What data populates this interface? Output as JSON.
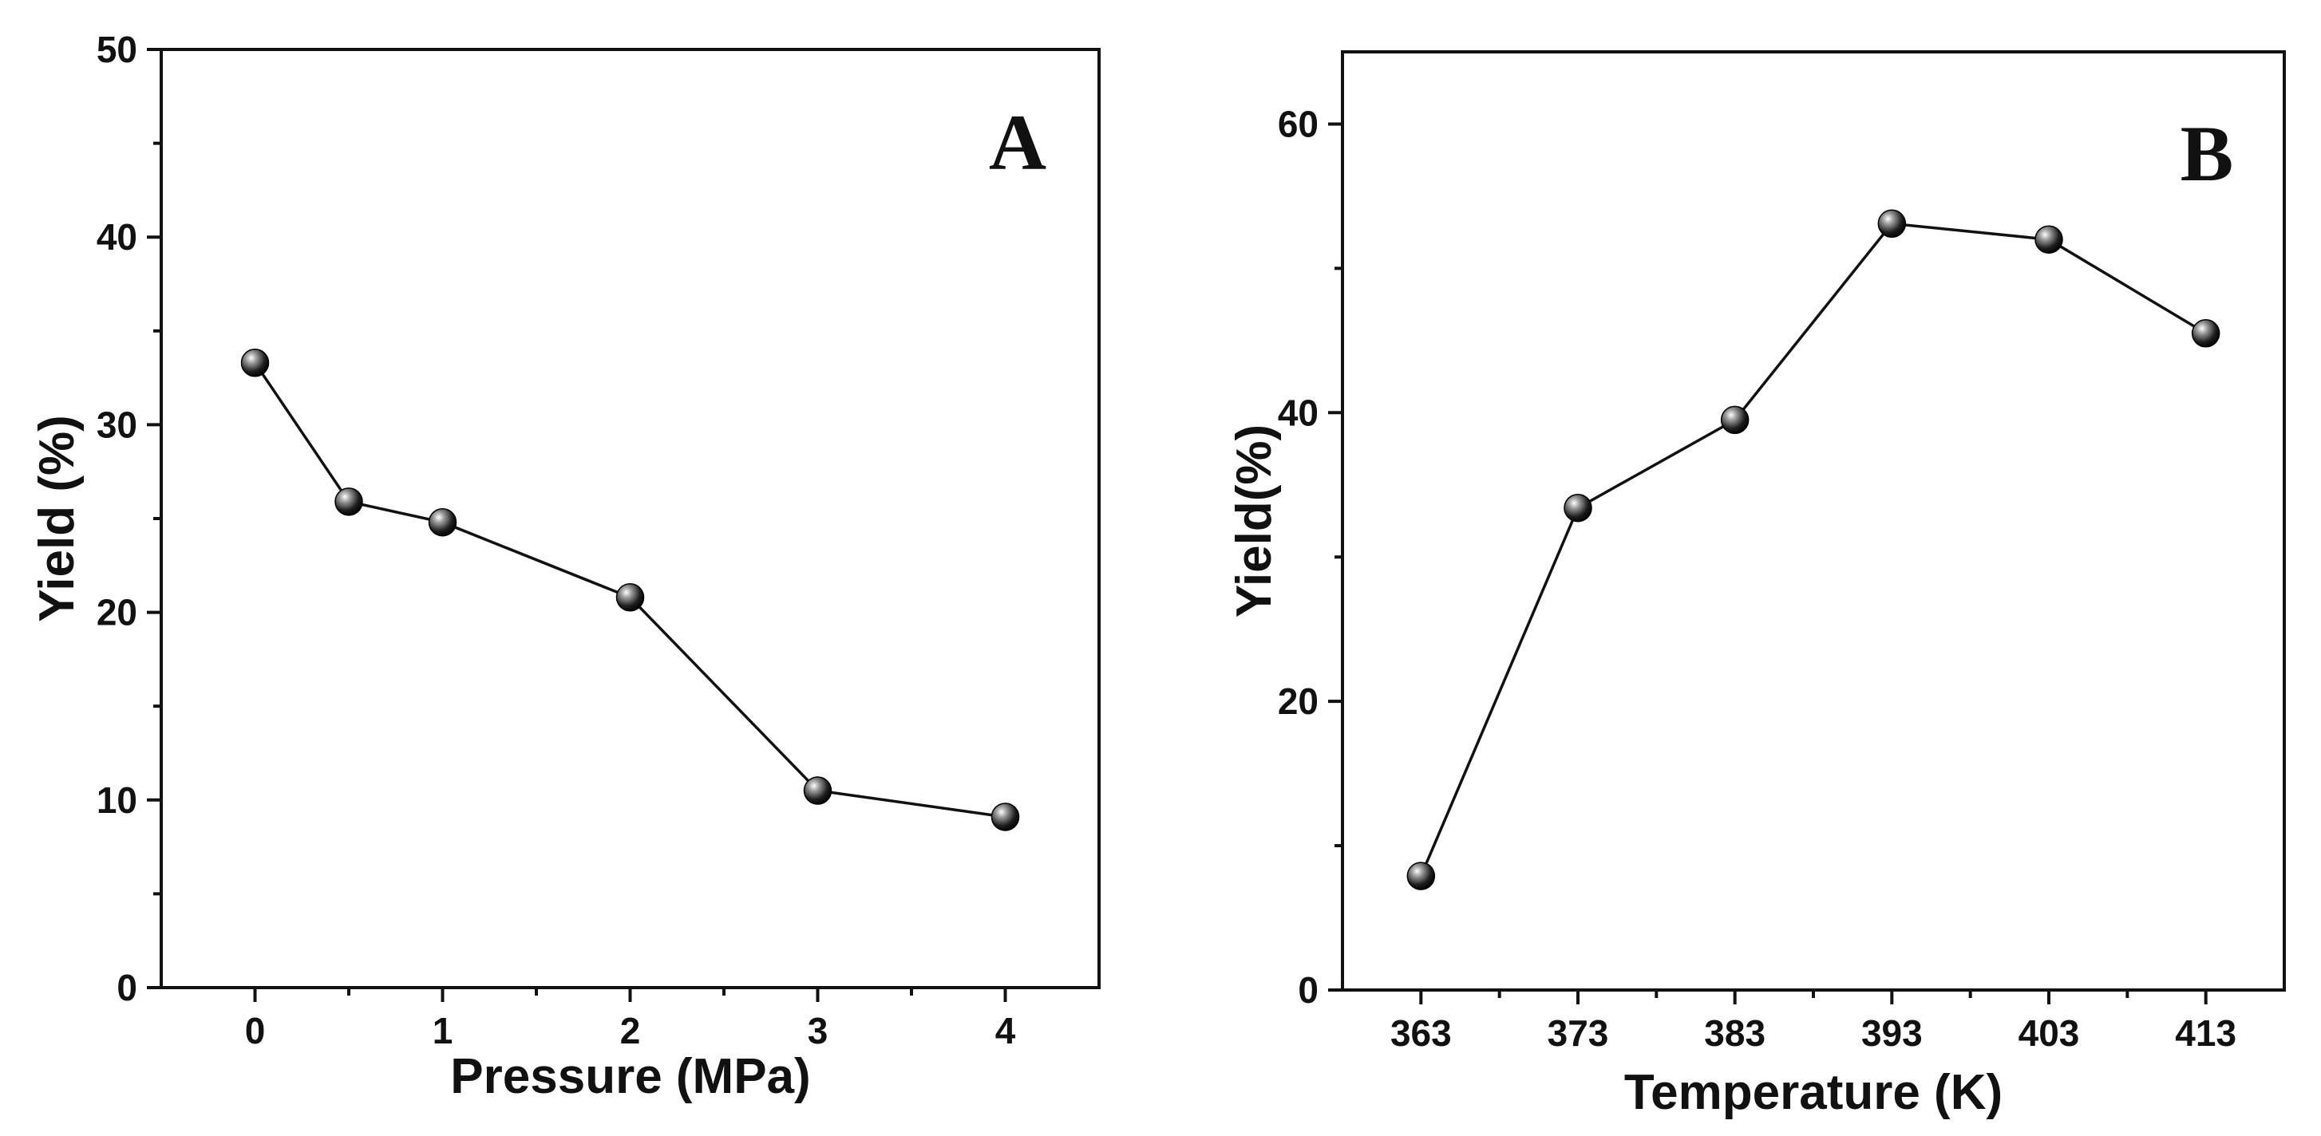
{
  "chart_data": [
    {
      "type": "line",
      "panel_label": "A",
      "title": "",
      "xlabel": "Pressure (MPa)",
      "ylabel": "Yield (%)",
      "xlim": [
        -0.5,
        4.5
      ],
      "ylim": [
        0,
        50
      ],
      "x_ticks": [
        "0",
        "1",
        "2",
        "3",
        "4"
      ],
      "y_ticks": [
        "0",
        "10",
        "20",
        "30",
        "40",
        "50"
      ],
      "grid": false,
      "series": [
        {
          "name": "Yield",
          "x": [
            0,
            0.5,
            1,
            2,
            3,
            4
          ],
          "y": [
            33.3,
            25.9,
            24.8,
            20.8,
            10.5,
            9.1
          ]
        }
      ]
    },
    {
      "type": "line",
      "panel_label": "B",
      "title": "",
      "xlabel": "Temperature (K)",
      "ylabel": "Yield(%)",
      "xlim": [
        358,
        418
      ],
      "ylim": [
        0,
        65
      ],
      "x_ticks": [
        "363",
        "373",
        "383",
        "393",
        "403",
        "413"
      ],
      "y_ticks": [
        "0",
        "20",
        "40",
        "60"
      ],
      "grid": false,
      "series": [
        {
          "name": "Yield",
          "x": [
            363,
            373,
            383,
            393,
            403,
            413
          ],
          "y": [
            7.9,
            33.4,
            39.5,
            53.1,
            52.0,
            45.5
          ]
        }
      ]
    }
  ]
}
